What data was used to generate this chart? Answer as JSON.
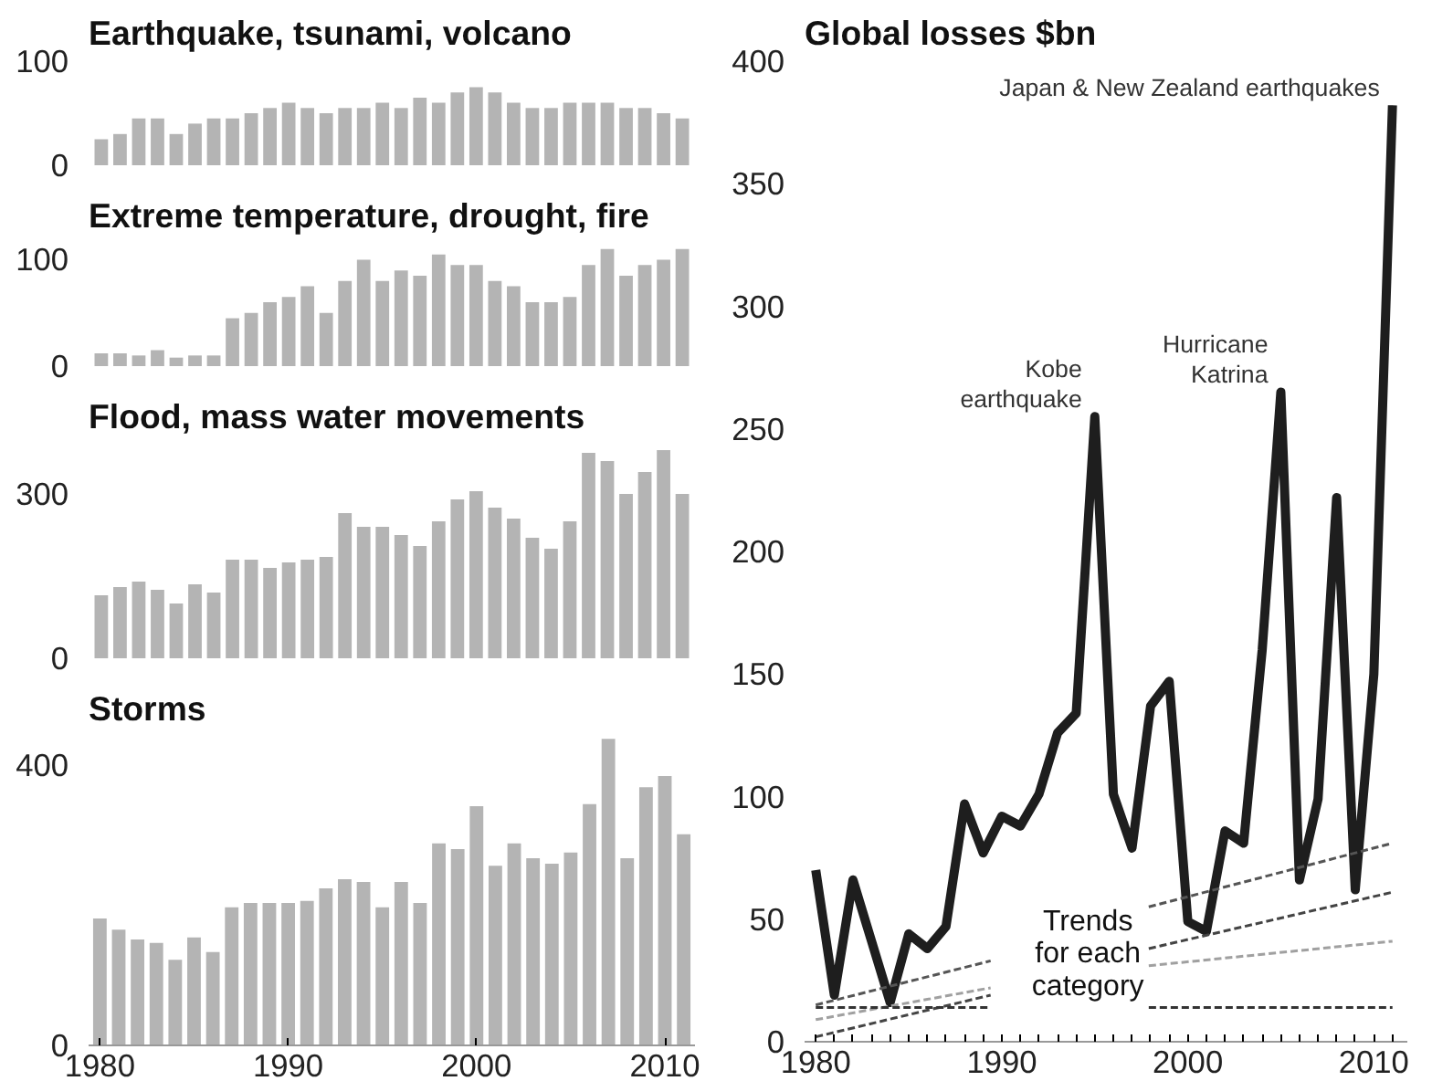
{
  "chart_data": [
    {
      "type": "bar",
      "title": "Earthquake, tsunami, volcano",
      "color": "#b4b4b4",
      "tick_labels": "y",
      "ylim": [
        0,
        100
      ],
      "yticks": [
        0,
        100
      ],
      "x": [
        1980,
        1981,
        1982,
        1983,
        1984,
        1985,
        1986,
        1987,
        1988,
        1989,
        1990,
        1991,
        1992,
        1993,
        1994,
        1995,
        1996,
        1997,
        1998,
        1999,
        2000,
        2001,
        2002,
        2003,
        2004,
        2005,
        2006,
        2007,
        2008,
        2009,
        2010,
        2011
      ],
      "values": [
        25,
        30,
        45,
        45,
        30,
        40,
        45,
        45,
        50,
        55,
        60,
        55,
        50,
        55,
        55,
        60,
        55,
        65,
        60,
        70,
        75,
        70,
        60,
        55,
        55,
        60,
        60,
        60,
        55,
        55,
        50,
        45
      ]
    },
    {
      "type": "bar",
      "title": "Extreme temperature, drought, fire",
      "color": "#b4b4b4",
      "tick_labels": "y",
      "ylim": [
        0,
        115
      ],
      "yticks": [
        0,
        100
      ],
      "x": [
        1980,
        1981,
        1982,
        1983,
        1984,
        1985,
        1986,
        1987,
        1988,
        1989,
        1990,
        1991,
        1992,
        1993,
        1994,
        1995,
        1996,
        1997,
        1998,
        1999,
        2000,
        2001,
        2002,
        2003,
        2004,
        2005,
        2006,
        2007,
        2008,
        2009,
        2010,
        2011
      ],
      "values": [
        12,
        12,
        10,
        15,
        8,
        10,
        10,
        45,
        50,
        60,
        65,
        75,
        50,
        80,
        100,
        80,
        90,
        85,
        105,
        95,
        95,
        80,
        75,
        60,
        60,
        65,
        95,
        110,
        85,
        95,
        100,
        110
      ]
    },
    {
      "type": "bar",
      "title": "Flood, mass water movements",
      "color": "#b4b4b4",
      "tick_labels": "y",
      "ylim": [
        0,
        390
      ],
      "yticks": [
        0,
        300
      ],
      "x": [
        1980,
        1981,
        1982,
        1983,
        1984,
        1985,
        1986,
        1987,
        1988,
        1989,
        1990,
        1991,
        1992,
        1993,
        1994,
        1995,
        1996,
        1997,
        1998,
        1999,
        2000,
        2001,
        2002,
        2003,
        2004,
        2005,
        2006,
        2007,
        2008,
        2009,
        2010,
        2011
      ],
      "values": [
        115,
        130,
        140,
        125,
        100,
        135,
        120,
        180,
        180,
        165,
        175,
        180,
        185,
        265,
        240,
        240,
        225,
        205,
        250,
        290,
        305,
        275,
        255,
        220,
        200,
        250,
        375,
        360,
        300,
        340,
        380,
        300
      ]
    },
    {
      "type": "bar",
      "title": "Storms",
      "color": "#b4b4b4",
      "xlim": [
        1979.4,
        2011.6
      ],
      "ylim": [
        0,
        440
      ],
      "yticks": [
        0,
        400
      ],
      "xticks": [
        1980,
        1990,
        2000,
        2010
      ],
      "x": [
        1980,
        1981,
        1982,
        1983,
        1984,
        1985,
        1986,
        1987,
        1988,
        1989,
        1990,
        1991,
        1992,
        1993,
        1994,
        1995,
        1996,
        1997,
        1998,
        1999,
        2000,
        2001,
        2002,
        2003,
        2004,
        2005,
        2006,
        2007,
        2008,
        2009,
        2010,
        2011
      ],
      "values": [
        181,
        165,
        151,
        146,
        122,
        154,
        133,
        197,
        203,
        203,
        203,
        206,
        224,
        237,
        233,
        197,
        233,
        203,
        288,
        280,
        341,
        256,
        288,
        267,
        259,
        275,
        344,
        437,
        267,
        368,
        384,
        301
      ]
    },
    {
      "type": "line",
      "title": "Global losses $bn",
      "line_style": "solid",
      "xlim": [
        1979.4,
        2011.8
      ],
      "ylim": [
        0,
        400
      ],
      "yticks": [
        0,
        50,
        100,
        150,
        200,
        250,
        300,
        350,
        400
      ],
      "xticks": [
        1980,
        {
          "value": 1981,
          "label": null
        },
        {
          "value": 1982,
          "label": null
        },
        {
          "value": 1983,
          "label": null
        },
        {
          "value": 1984,
          "label": null
        },
        {
          "value": 1985,
          "label": null
        },
        {
          "value": 1986,
          "label": null
        },
        {
          "value": 1987,
          "label": null
        },
        {
          "value": 1988,
          "label": null
        },
        {
          "value": 1989,
          "label": null
        },
        1990,
        {
          "value": 1991,
          "label": null
        },
        {
          "value": 1992,
          "label": null
        },
        {
          "value": 1993,
          "label": null
        },
        {
          "value": 1994,
          "label": null
        },
        {
          "value": 1995,
          "label": null
        },
        {
          "value": 1996,
          "label": null
        },
        {
          "value": 1997,
          "label": null
        },
        {
          "value": 1998,
          "label": null
        },
        {
          "value": 1999,
          "label": null
        },
        2000,
        {
          "value": 2001,
          "label": null
        },
        {
          "value": 2002,
          "label": null
        },
        {
          "value": 2003,
          "label": null
        },
        {
          "value": 2004,
          "label": null
        },
        {
          "value": 2005,
          "label": null
        },
        {
          "value": 2006,
          "label": null
        },
        {
          "value": 2007,
          "label": null
        },
        {
          "value": 2008,
          "label": null
        },
        {
          "value": 2009,
          "label": null
        },
        2010,
        {
          "value": 2011,
          "label": null
        }
      ],
      "series": [
        {
          "color": "#1e1e1e",
          "x": [
            1980,
            1981,
            1982,
            1983,
            1984,
            1985,
            1986,
            1987,
            1988,
            1989,
            1990,
            1991,
            1992,
            1993,
            1994,
            1995,
            1996,
            1997,
            1998,
            1999,
            2000,
            2001,
            2002,
            2003,
            2004,
            2005,
            2006,
            2007,
            2008,
            2009,
            2010,
            2011
          ],
          "values": [
            70,
            19,
            66,
            41,
            16,
            44,
            38,
            47,
            97,
            77,
            92,
            88,
            101,
            126,
            134,
            255,
            101,
            79,
            137,
            147,
            49,
            45,
            86,
            81,
            160,
            265,
            66,
            99,
            222,
            62,
            150,
            382
          ]
        },
        {
          "color": "#555555",
          "line_style": "dashed",
          "x": [
            1980,
            1989.4,
            1994,
            1997.9,
            2011
          ],
          "values": [
            15,
            33,
            null,
            55,
            81
          ]
        },
        {
          "color": "#444444",
          "line_style": "dashed",
          "x": [
            1980,
            1989.4,
            1994,
            1997.9,
            2011
          ],
          "values": [
            2,
            19,
            null,
            38,
            61
          ]
        },
        {
          "color": "#a0a0a0",
          "line_style": "dashed",
          "x": [
            1980,
            1989.4,
            1994,
            1997.9,
            2011
          ],
          "values": [
            9,
            22,
            null,
            31,
            41
          ]
        },
        {
          "color": "#333333",
          "line_style": "dashed",
          "x": [
            1980,
            1989.4,
            1994,
            1997.9,
            2011
          ],
          "values": [
            14,
            14,
            null,
            14,
            14
          ]
        }
      ],
      "annotations": [
        {
          "text": "Japan & New Zealand earthquakes",
          "x": 2011,
          "y": 382
        },
        {
          "text": "Kobe\nearthquake",
          "x": 1995,
          "y": 255
        },
        {
          "text": "Hurricane\nKatrina",
          "x": 2005,
          "y": 265
        },
        "Trends\nfor each\ncategory"
      ]
    }
  ]
}
